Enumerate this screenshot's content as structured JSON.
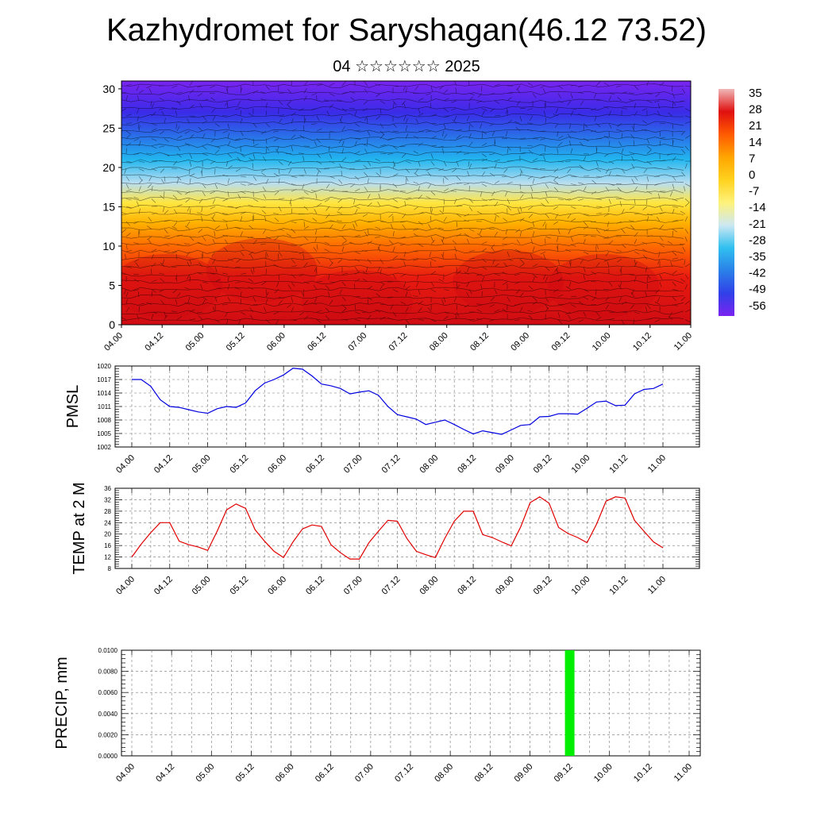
{
  "header": {
    "title": "Kazhydromet for Saryshagan(46.12 73.52)",
    "subtitle": "04 ☆☆☆☆☆☆ 2025"
  },
  "chart_data": [
    {
      "type": "heatmap",
      "title": "",
      "xlabel": "",
      "ylabel": "",
      "x_tick_labels": [
        "04.00",
        "04.12",
        "05.00",
        "05.12",
        "06.00",
        "06.12",
        "07.00",
        "07.12",
        "08.00",
        "08.12",
        "09.00",
        "09.12",
        "10.00",
        "10.12",
        "11.00"
      ],
      "ylim": [
        0,
        31
      ],
      "y_ticks": [
        0,
        5,
        10,
        15,
        20,
        25,
        30
      ],
      "colorbar_labels": [
        "35",
        "28",
        "21",
        "14",
        "7",
        "0",
        "-7",
        "-14",
        "-21",
        "-28",
        "-35",
        "-42",
        "-49",
        "-56"
      ],
      "colorbar_range": [
        -63,
        40
      ],
      "colors": {
        "bands": [
          "#7a24f0",
          "#3a2be8",
          "#2a6fe8",
          "#22b6ef",
          "#b9def0",
          "#ffe640",
          "#ffb200",
          "#ff6a00",
          "#e81a10",
          "#cf0c12"
        ],
        "note_levels": [
          31,
          27,
          24,
          21,
          18,
          15.5,
          13,
          10,
          6,
          0
        ]
      },
      "overlay": "wind barbs"
    },
    {
      "type": "line",
      "ylabel": "PMSL",
      "x_tick_labels": [
        "04.00",
        "04.12",
        "05.00",
        "05.12",
        "06.00",
        "06.12",
        "07.00",
        "07.12",
        "08.00",
        "08.12",
        "09.00",
        "09.12",
        "10.00",
        "10.12",
        "11.00"
      ],
      "ylim": [
        1002,
        1020
      ],
      "y_ticks": [
        1002,
        1005,
        1008,
        1011,
        1014,
        1017,
        1020
      ],
      "grid": true,
      "color": "#0000e0",
      "x": [
        0,
        3,
        6,
        9,
        12,
        15,
        18,
        21,
        24,
        27,
        30,
        33,
        36,
        39,
        42,
        45,
        48,
        51,
        54,
        57,
        60,
        63,
        66,
        69,
        72,
        75,
        78,
        81,
        84,
        87,
        90,
        93,
        96,
        99,
        102,
        105,
        108,
        111,
        114,
        117,
        120,
        123,
        126,
        129,
        132,
        135,
        138,
        141,
        144,
        147,
        150,
        153,
        156,
        159,
        162,
        165,
        168
      ],
      "y": [
        1017,
        1017,
        1015.5,
        1012.5,
        1011,
        1010.8,
        1010.3,
        1009.8,
        1009.5,
        1010.5,
        1011,
        1010.8,
        1011.8,
        1014.5,
        1016.2,
        1017,
        1018,
        1019.5,
        1019.3,
        1017.8,
        1016,
        1015.6,
        1015,
        1013.8,
        1014.2,
        1014.5,
        1013.5,
        1011,
        1009.2,
        1008.7,
        1008.2,
        1007,
        1007.5,
        1008,
        1007,
        1005.9,
        1004.9,
        1005.6,
        1005.2,
        1004.8,
        1005.8,
        1006.8,
        1007,
        1008.7,
        1008.8,
        1009.4,
        1009.4,
        1009.3,
        1010.6,
        1012,
        1012.2,
        1011.2,
        1011.3,
        1013.8,
        1014.8,
        1015,
        1016
      ]
    },
    {
      "type": "line",
      "ylabel": "TEMP at 2 M",
      "x_tick_labels": [
        "04.00",
        "04.12",
        "05.00",
        "05.12",
        "06.00",
        "06.12",
        "07.00",
        "07.12",
        "08.00",
        "08.12",
        "09.00",
        "09.12",
        "10.00",
        "10.12",
        "11.00"
      ],
      "ylim": [
        8,
        36
      ],
      "y_ticks": [
        8,
        12,
        16,
        20,
        24,
        28,
        32,
        36
      ],
      "grid": true,
      "color": "#e00000",
      "x": [
        0,
        3,
        6,
        9,
        12,
        15,
        18,
        21,
        24,
        27,
        30,
        33,
        36,
        39,
        42,
        45,
        48,
        51,
        54,
        57,
        60,
        63,
        66,
        69,
        72,
        75,
        78,
        81,
        84,
        87,
        90,
        93,
        96,
        99,
        102,
        105,
        108,
        111,
        114,
        117,
        120,
        123,
        126,
        129,
        132,
        135,
        138,
        141,
        144,
        147,
        150,
        153,
        156,
        159,
        162,
        165,
        168
      ],
      "y": [
        12,
        16.5,
        20.5,
        24,
        24,
        17.5,
        16.3,
        15.5,
        14.3,
        21,
        28.5,
        30.5,
        29,
        21.5,
        17.5,
        14,
        11.8,
        17.3,
        21.8,
        23.2,
        22.7,
        16.3,
        13.5,
        11.3,
        11.3,
        17,
        21,
        24.8,
        24.5,
        18.5,
        14,
        12.8,
        11.8,
        18.5,
        24.5,
        28,
        28,
        19.8,
        18.8,
        17.3,
        15.9,
        22.5,
        31,
        33,
        30.8,
        22.3,
        20.2,
        18.8,
        17,
        23.5,
        31.5,
        33,
        32.6,
        24.8,
        21,
        17.3,
        15.2
      ]
    },
    {
      "type": "bar",
      "ylabel": "PRECIP, mm",
      "x_tick_labels": [
        "04.00",
        "04.12",
        "05.00",
        "05.12",
        "06.00",
        "06.12",
        "07.00",
        "07.12",
        "08.00",
        "08.12",
        "09.00",
        "09.12",
        "10.00",
        "10.12",
        "11.00"
      ],
      "ylim": [
        0,
        0.01
      ],
      "y_tick_labels": [
        "0.0000",
        "0.0020",
        "0.0040",
        "0.0060",
        "0.0080",
        "0.0100"
      ],
      "grid": true,
      "color": "#00ee00",
      "x": [
        132
      ],
      "values": [
        0.01
      ]
    }
  ]
}
